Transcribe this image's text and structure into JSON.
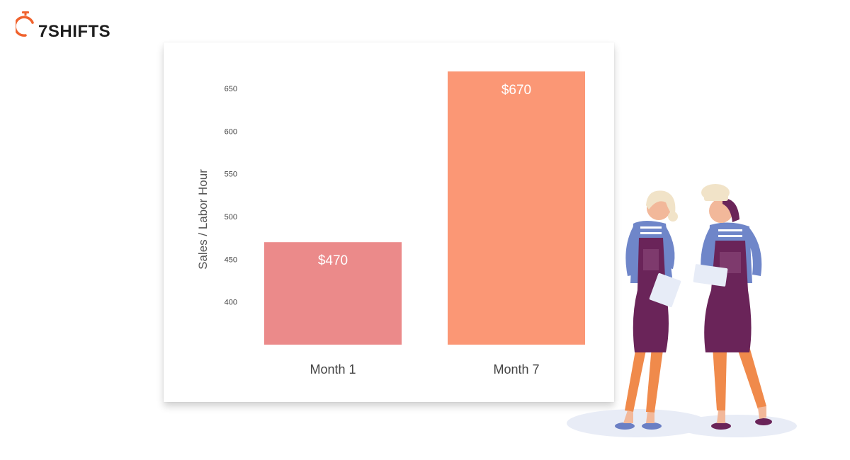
{
  "brand": {
    "logo_text": "7SHIFTS",
    "accent_color": "#f0622d",
    "logo_icon": "stopwatch-icon"
  },
  "colors": {
    "bar_month_1": "#eb8a8a",
    "bar_month_7": "#fb9775",
    "value_label": "#ffffff"
  },
  "chart_data": {
    "type": "bar",
    "title": "",
    "xlabel": "",
    "ylabel": "Sales / Labor Hour",
    "categories": [
      "Month 1",
      "Month 7"
    ],
    "values": [
      470,
      670
    ],
    "value_labels": [
      "$470",
      "$670"
    ],
    "yticks": [
      400,
      450,
      500,
      550,
      600,
      650
    ],
    "ylim": [
      350,
      680
    ],
    "grid": false,
    "legend": "none"
  },
  "illustration": {
    "description_icon": "two-restaurant-staff-with-tablet-illustration"
  }
}
